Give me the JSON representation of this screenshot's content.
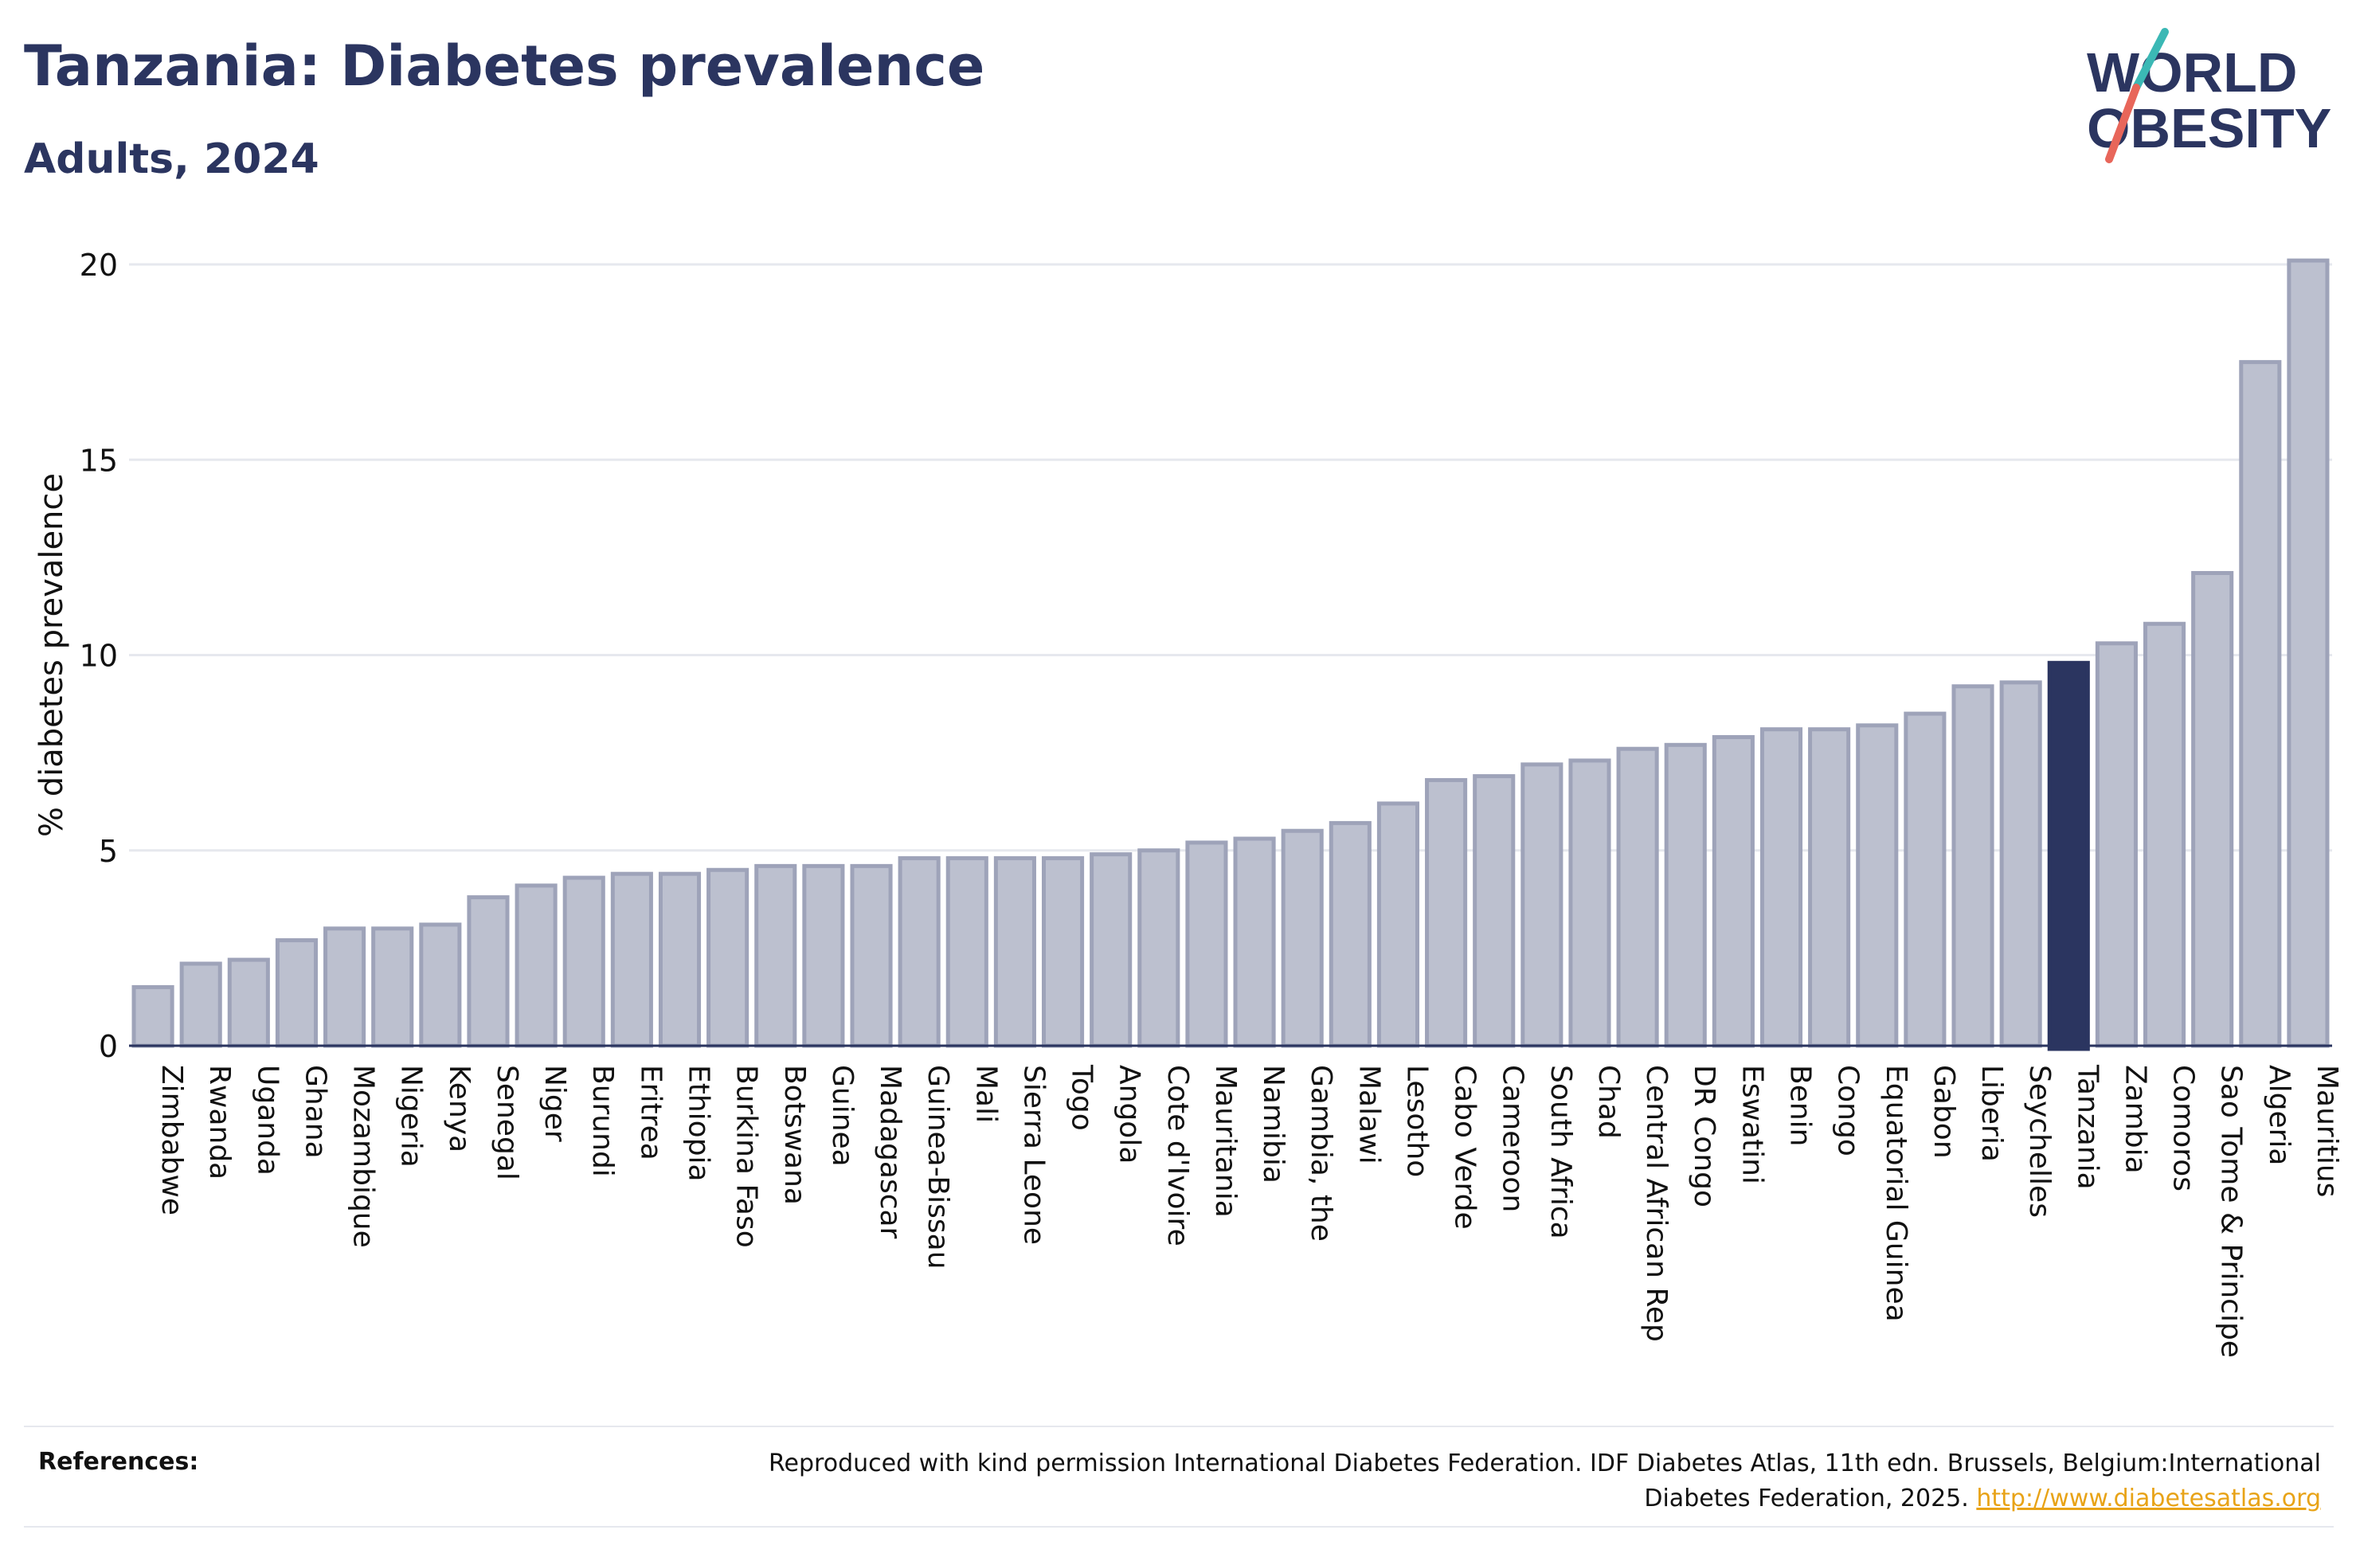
{
  "title": "Tanzania: Diabetes prevalence",
  "subtitle": "Adults, 2024",
  "logo": {
    "line1": "WORLD",
    "line2": "OBESITY"
  },
  "colors": {
    "bar": "#bcc0cf",
    "bar_stroke": "#9ea3b9",
    "highlight": "#2b3560",
    "text": "#2b3560"
  },
  "chart_data": {
    "type": "bar",
    "ylabel": "% diabetes prevalence",
    "xlabel": "",
    "ylim": [
      0,
      21
    ],
    "yticks": [
      0,
      5,
      10,
      15,
      20
    ],
    "grid": true,
    "highlight": "Tanzania",
    "categories": [
      "Zimbabwe",
      "Rwanda",
      "Uganda",
      "Ghana",
      "Mozambique",
      "Nigeria",
      "Kenya",
      "Senegal",
      "Niger",
      "Burundi",
      "Eritrea",
      "Ethiopia",
      "Burkina Faso",
      "Botswana",
      "Guinea",
      "Madagascar",
      "Guinea-Bissau",
      "Mali",
      "Sierra Leone",
      "Togo",
      "Angola",
      "Cote d'Ivoire",
      "Mauritania",
      "Namibia",
      "Gambia, the",
      "Malawi",
      "Lesotho",
      "Cabo Verde",
      "Cameroon",
      "South Africa",
      "Chad",
      "Central African Rep",
      "DR Congo",
      "Eswatini",
      "Benin",
      "Congo",
      "Equatorial Guinea",
      "Gabon",
      "Liberia",
      "Seychelles",
      "Tanzania",
      "Zambia",
      "Comoros",
      "Sao Tome & Principe",
      "Algeria",
      "Mauritius"
    ],
    "values": [
      1.5,
      2.1,
      2.2,
      2.7,
      3.0,
      3.0,
      3.1,
      3.8,
      4.1,
      4.3,
      4.4,
      4.4,
      4.5,
      4.6,
      4.6,
      4.6,
      4.8,
      4.8,
      4.8,
      4.8,
      4.9,
      5.0,
      5.2,
      5.3,
      5.5,
      5.7,
      6.2,
      6.8,
      6.9,
      7.2,
      7.3,
      7.6,
      7.7,
      7.9,
      8.1,
      8.1,
      8.2,
      8.5,
      9.2,
      9.3,
      9.8,
      10.3,
      10.8,
      12.1,
      17.5,
      20.1
    ]
  },
  "references": {
    "label": "References:",
    "text": "Reproduced with kind permission International Diabetes Federation. IDF Diabetes Atlas, 11th edn. Brussels, Belgium:International Diabetes Federation, 2025.",
    "link": "http://www.diabetesatlas.org"
  }
}
